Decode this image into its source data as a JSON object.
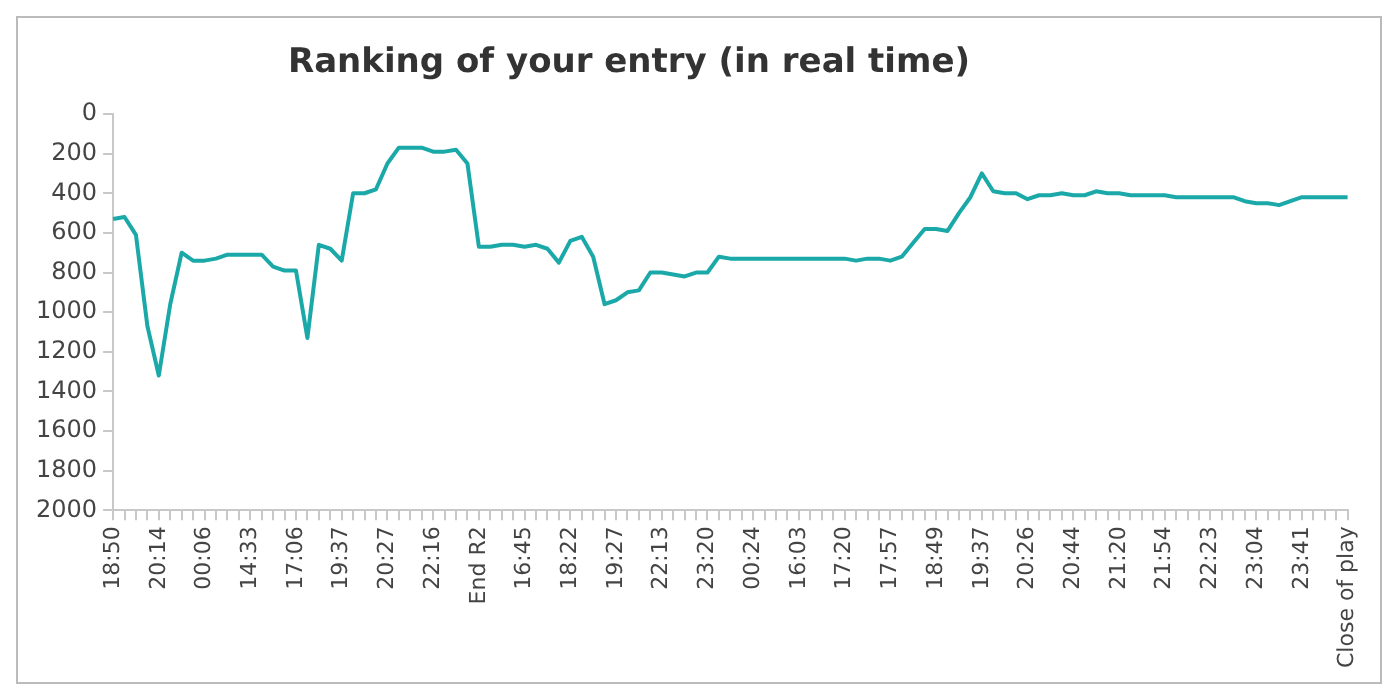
{
  "chart_data": {
    "type": "line",
    "title": "Ranking of your entry (in real time)",
    "categories": [
      "18:50",
      null,
      null,
      null,
      "20:14",
      null,
      null,
      null,
      "00:06",
      null,
      null,
      null,
      "14:33",
      null,
      null,
      null,
      "17:06",
      null,
      null,
      null,
      "19:37",
      null,
      null,
      null,
      "20:27",
      null,
      null,
      null,
      "22:16",
      null,
      null,
      null,
      "End R2",
      null,
      null,
      null,
      "16:45",
      null,
      null,
      null,
      "18:22",
      null,
      null,
      null,
      "19:27",
      null,
      null,
      null,
      "22:13",
      null,
      null,
      null,
      "23:20",
      null,
      null,
      null,
      "00:24",
      null,
      null,
      null,
      "16:03",
      null,
      null,
      null,
      "17:20",
      null,
      null,
      null,
      "17:57",
      null,
      null,
      null,
      "18:49",
      null,
      null,
      null,
      "19:37",
      null,
      null,
      null,
      "20:26",
      null,
      null,
      null,
      "20:44",
      null,
      null,
      null,
      "21:20",
      null,
      null,
      null,
      "21:54",
      null,
      null,
      null,
      "22:23",
      null,
      null,
      null,
      "23:04",
      null,
      null,
      null,
      "23:41",
      null,
      null,
      null,
      "Close of play"
    ],
    "series": [
      {
        "color": "#1aa9a8",
        "values": [
          530,
          520,
          610,
          1070,
          1320,
          960,
          700,
          740,
          740,
          730,
          710,
          710,
          710,
          710,
          770,
          790,
          790,
          1130,
          660,
          680,
          740,
          400,
          400,
          380,
          250,
          170,
          170,
          170,
          190,
          190,
          180,
          250,
          670,
          670,
          660,
          660,
          670,
          660,
          680,
          750,
          640,
          620,
          720,
          960,
          940,
          900,
          890,
          800,
          800,
          810,
          820,
          800,
          800,
          720,
          730,
          730,
          730,
          730,
          730,
          730,
          730,
          730,
          730,
          730,
          730,
          740,
          730,
          730,
          740,
          720,
          650,
          580,
          580,
          590,
          500,
          420,
          300,
          390,
          400,
          400,
          430,
          410,
          410,
          400,
          410,
          410,
          390,
          400,
          400,
          410,
          410,
          410,
          410,
          420,
          420,
          420,
          420,
          420,
          420,
          440,
          450,
          450,
          460,
          440,
          420,
          420,
          420,
          420,
          420
        ]
      }
    ],
    "ylim": [
      2000,
      0
    ],
    "yticks": [
      0,
      200,
      400,
      600,
      800,
      1000,
      1200,
      1400,
      1600,
      1800,
      2000
    ],
    "grid": false,
    "legend": false,
    "marker": "none",
    "line_style": "solid"
  }
}
